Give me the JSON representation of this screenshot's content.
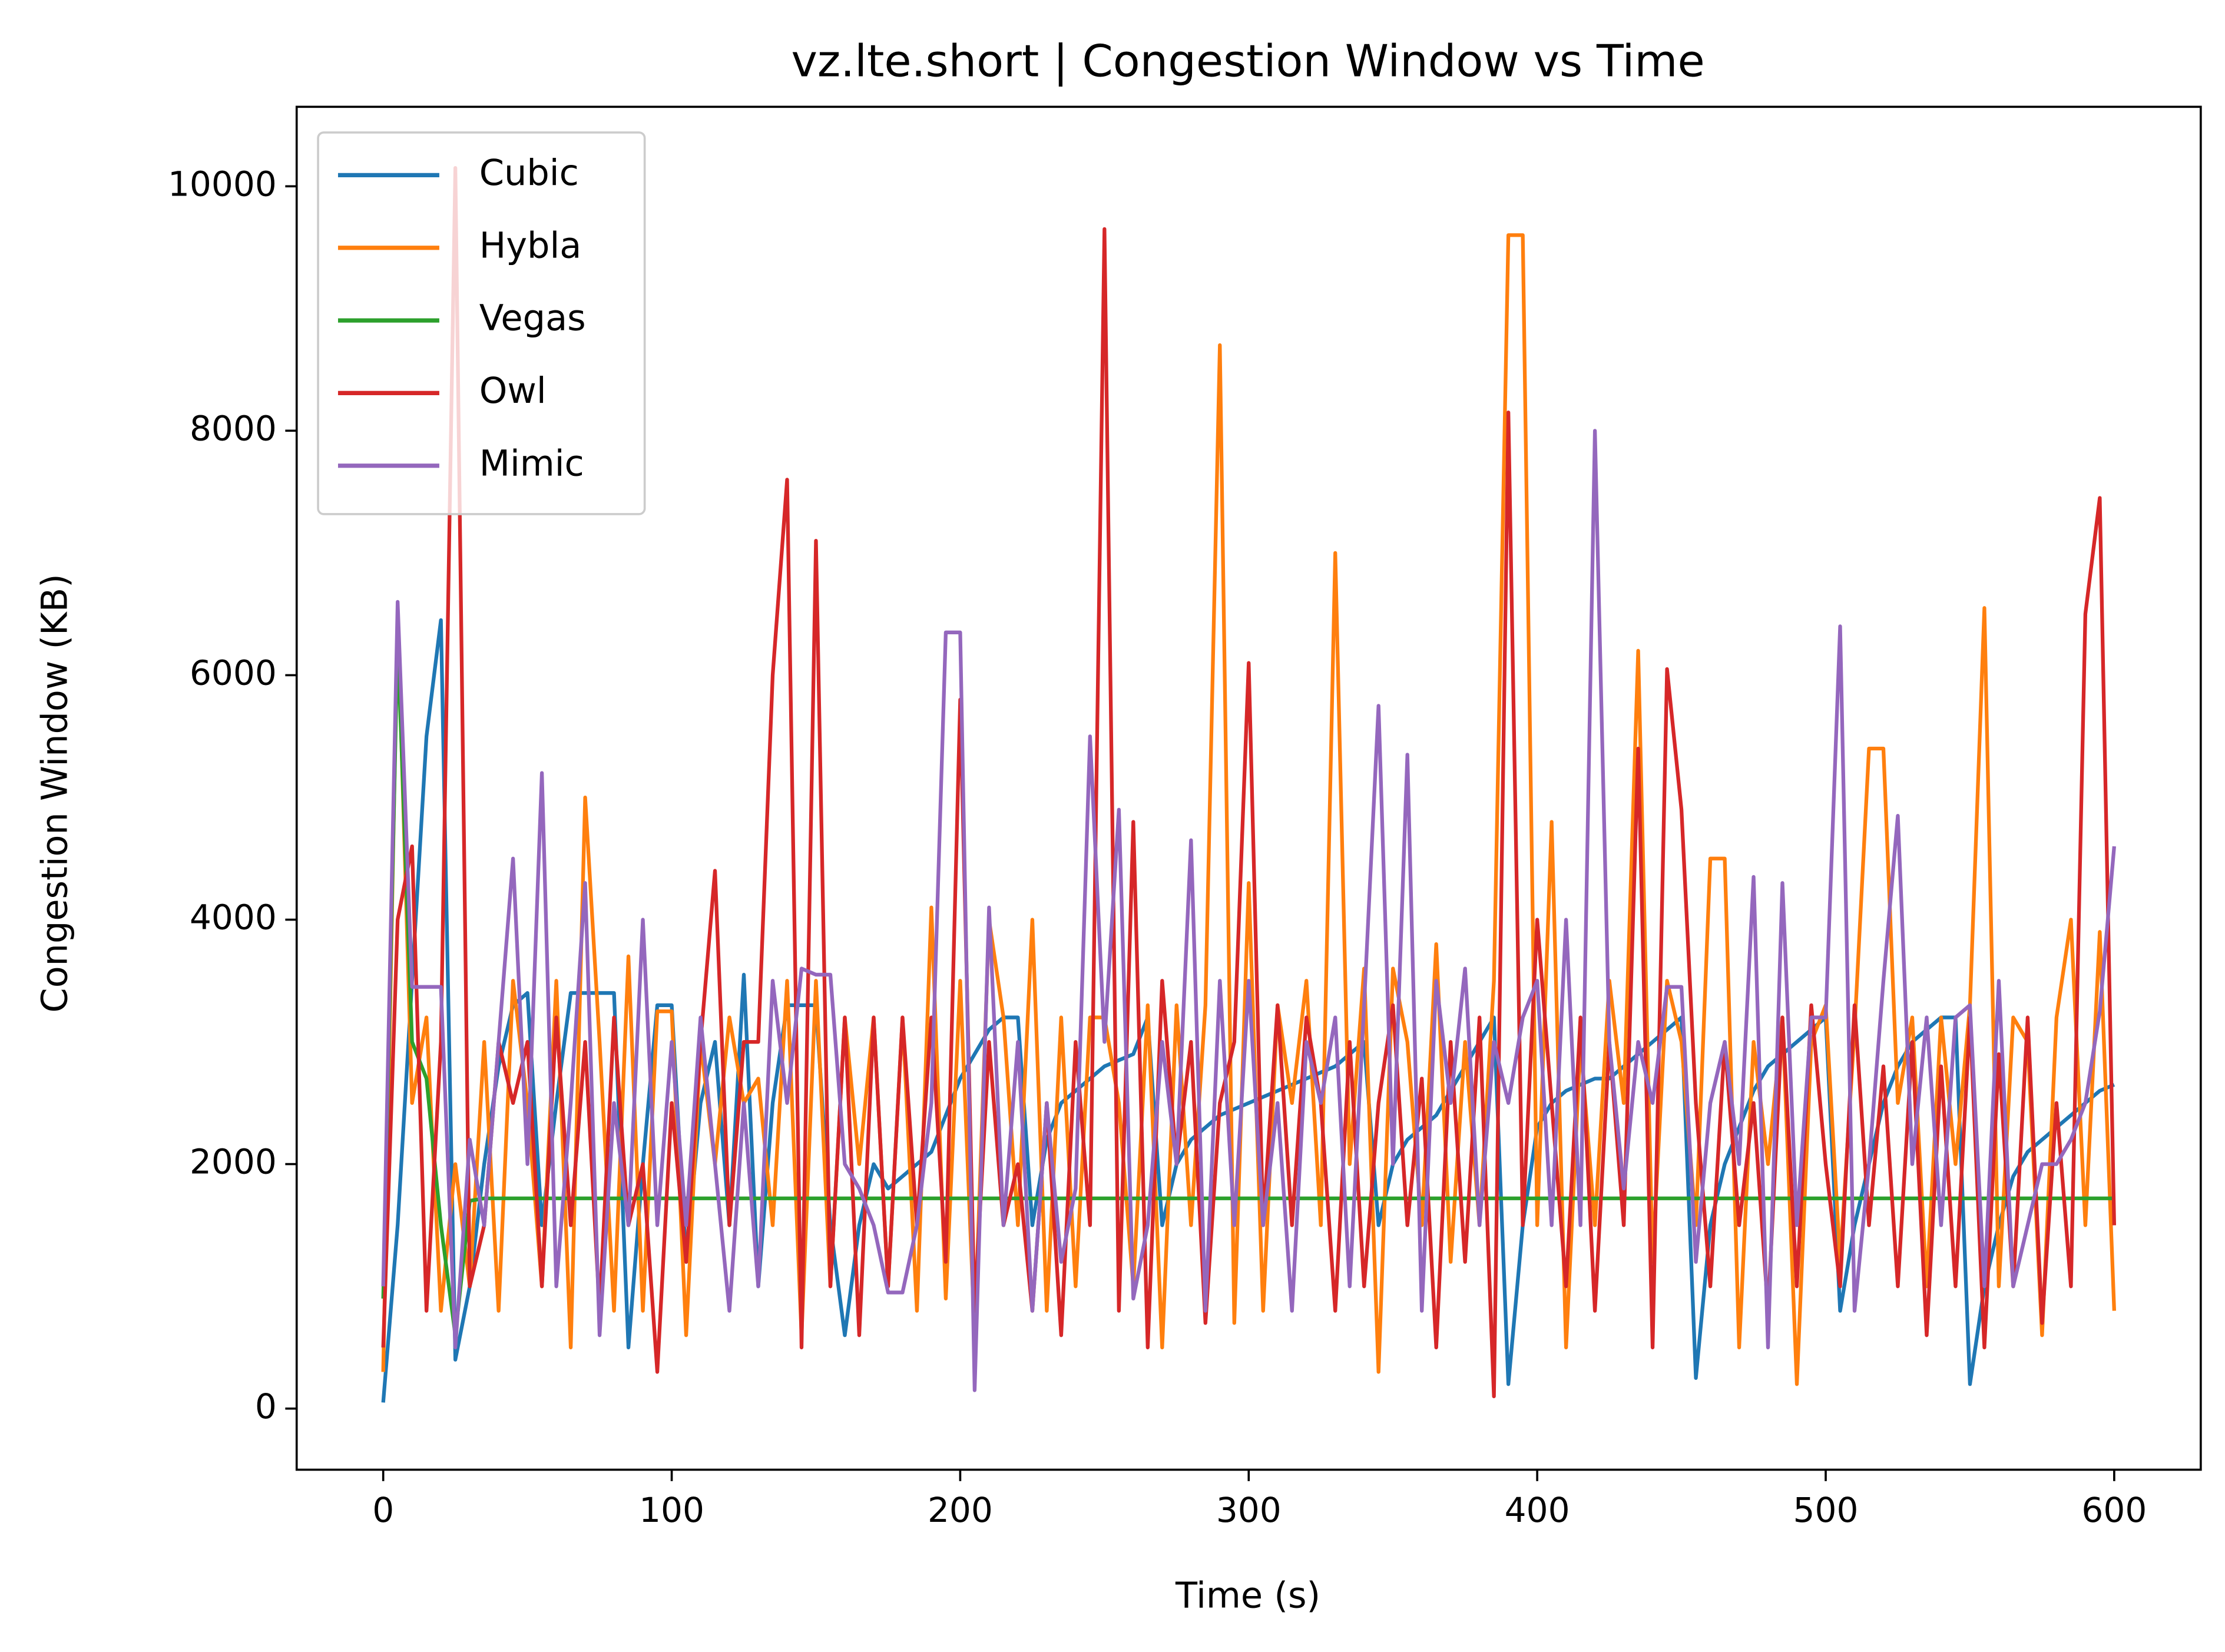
{
  "chart_data": {
    "type": "line",
    "title": "vz.lte.short | Congestion Window vs Time",
    "xlabel": "Time (s)",
    "ylabel": "Congestion Window (KB)",
    "x": [
      0,
      5,
      10,
      15,
      20,
      25,
      30,
      35,
      40,
      45,
      50,
      55,
      60,
      65,
      70,
      75,
      80,
      85,
      90,
      95,
      100,
      105,
      110,
      115,
      120,
      125,
      130,
      135,
      140,
      145,
      150,
      155,
      160,
      165,
      170,
      175,
      180,
      185,
      190,
      195,
      200,
      205,
      210,
      215,
      220,
      225,
      230,
      235,
      240,
      245,
      250,
      255,
      260,
      265,
      270,
      275,
      280,
      285,
      290,
      295,
      300,
      305,
      310,
      315,
      320,
      325,
      330,
      335,
      340,
      345,
      350,
      355,
      360,
      365,
      370,
      375,
      380,
      385,
      390,
      395,
      400,
      405,
      410,
      415,
      420,
      425,
      430,
      435,
      440,
      445,
      450,
      455,
      460,
      465,
      470,
      475,
      480,
      485,
      490,
      495,
      500,
      505,
      510,
      515,
      520,
      525,
      530,
      535,
      540,
      545,
      550,
      555,
      560,
      565,
      570,
      575,
      580,
      585,
      590,
      595,
      600
    ],
    "series": [
      {
        "name": "Cubic",
        "color": "#1f77b4",
        "values": [
          50,
          1500,
          3500,
          5500,
          6450,
          400,
          1000,
          2000,
          2800,
          3300,
          3400,
          1500,
          2500,
          3400,
          3400,
          3400,
          3400,
          500,
          2000,
          3300,
          3300,
          1200,
          2500,
          3000,
          1500,
          3550,
          1000,
          2500,
          3300,
          3300,
          3300,
          1500,
          600,
          1500,
          2000,
          1800,
          1900,
          2000,
          2100,
          2400,
          2700,
          2900,
          3100,
          3200,
          3200,
          1500,
          2200,
          2500,
          2600,
          2700,
          2800,
          2850,
          2900,
          3200,
          1500,
          2000,
          2200,
          2300,
          2400,
          2450,
          2500,
          2550,
          2600,
          2650,
          2700,
          2750,
          2800,
          2900,
          3000,
          1500,
          2000,
          2200,
          2300,
          2400,
          2600,
          2800,
          3000,
          3200,
          200,
          1500,
          2300,
          2500,
          2600,
          2650,
          2700,
          2700,
          2800,
          2900,
          3000,
          3100,
          3200,
          250,
          1500,
          2000,
          2300,
          2600,
          2800,
          2900,
          3000,
          3100,
          3200,
          800,
          1500,
          2000,
          2500,
          2800,
          3000,
          3100,
          3200,
          3200,
          200,
          1000,
          1500,
          1900,
          2100,
          2200,
          2300,
          2400,
          2500,
          2600,
          2650
        ]
      },
      {
        "name": "Hybla",
        "color": "#ff7f0e",
        "values": [
          300,
          6500,
          2500,
          3200,
          800,
          2000,
          1000,
          3000,
          800,
          3500,
          2500,
          1000,
          3500,
          500,
          5000,
          3000,
          800,
          3700,
          800,
          3250,
          3250,
          600,
          3000,
          2000,
          3200,
          2500,
          2700,
          1500,
          3500,
          600,
          3500,
          1000,
          3200,
          2000,
          3200,
          1000,
          3200,
          800,
          4100,
          900,
          3500,
          600,
          4000,
          3200,
          1500,
          4000,
          800,
          3200,
          1000,
          3200,
          3200,
          2500,
          1000,
          3300,
          500,
          3300,
          1500,
          3300,
          8700,
          700,
          4300,
          800,
          3300,
          2500,
          3500,
          1500,
          7000,
          2000,
          3600,
          300,
          3600,
          3000,
          1500,
          3800,
          1200,
          3000,
          1500,
          3500,
          9600,
          9600,
          1500,
          4800,
          500,
          3000,
          1500,
          3500,
          2500,
          6200,
          1200,
          3500,
          3000,
          1500,
          4500,
          4500,
          500,
          3000,
          2000,
          3200,
          200,
          3000,
          3300,
          1200,
          3100,
          5400,
          5400,
          2500,
          3200,
          1000,
          3200,
          2000,
          3300,
          6550,
          1000,
          3200,
          3000,
          600,
          3200,
          4000,
          1500,
          3900,
          800
        ]
      },
      {
        "name": "Vegas",
        "color": "#2ca02c",
        "values": [
          900,
          6300,
          3000,
          2700,
          1500,
          600,
          1700,
          1720,
          1720,
          1720,
          1720,
          1720,
          1720,
          1720,
          1720,
          1720,
          1720,
          1720,
          1720,
          1720,
          1720,
          1720,
          1720,
          1720,
          1720,
          1720,
          1720,
          1720,
          1720,
          1720,
          1720,
          1720,
          1720,
          1720,
          1720,
          1720,
          1720,
          1720,
          1720,
          1720,
          1720,
          1720,
          1720,
          1720,
          1720,
          1720,
          1720,
          1720,
          1720,
          1720,
          1720,
          1720,
          1720,
          1720,
          1720,
          1720,
          1720,
          1720,
          1720,
          1720,
          1720,
          1720,
          1720,
          1720,
          1720,
          1720,
          1720,
          1720,
          1720,
          1720,
          1720,
          1720,
          1720,
          1720,
          1720,
          1720,
          1720,
          1720,
          1720,
          1720,
          1720,
          1720,
          1720,
          1720,
          1720,
          1720,
          1720,
          1720,
          1720,
          1720,
          1720,
          1720,
          1720,
          1720,
          1720,
          1720,
          1720,
          1720,
          1720,
          1720,
          1720,
          1720,
          1720,
          1720,
          1720,
          1720,
          1720,
          1720,
          1720,
          1720,
          1720,
          1720,
          1720,
          1720,
          1720,
          1720,
          1720,
          1720,
          1720,
          1720,
          1720
        ]
      },
      {
        "name": "Owl",
        "color": "#d62728",
        "values": [
          500,
          4000,
          4600,
          800,
          3000,
          10150,
          1000,
          1500,
          3000,
          2500,
          3000,
          1000,
          3200,
          1500,
          3000,
          800,
          3200,
          1500,
          2000,
          300,
          2500,
          1200,
          3000,
          4400,
          1500,
          3000,
          3000,
          6000,
          7600,
          500,
          7100,
          1000,
          3200,
          600,
          3200,
          1000,
          3200,
          1500,
          3200,
          1200,
          5800,
          800,
          3000,
          1500,
          2000,
          800,
          2500,
          600,
          3000,
          1500,
          9650,
          800,
          4800,
          500,
          3500,
          2000,
          3000,
          700,
          2500,
          3000,
          6100,
          1500,
          3300,
          1500,
          3200,
          2500,
          800,
          3000,
          1000,
          2500,
          3300,
          1500,
          2700,
          500,
          3000,
          1200,
          3200,
          100,
          8150,
          1500,
          4000,
          2500,
          1000,
          3200,
          800,
          3000,
          1500,
          5400,
          500,
          6050,
          4900,
          2500,
          1000,
          3000,
          1500,
          2500,
          800,
          3200,
          1000,
          3300,
          2000,
          1000,
          3300,
          1500,
          2800,
          1000,
          3000,
          600,
          2800,
          1000,
          3200,
          500,
          2900,
          1000,
          3200,
          700,
          2500,
          1000,
          6500,
          7450,
          1500
        ]
      },
      {
        "name": "Mimic",
        "color": "#9467bd",
        "values": [
          1000,
          6600,
          3450,
          3450,
          3450,
          500,
          2200,
          1500,
          3000,
          4500,
          2000,
          5200,
          1000,
          2500,
          4300,
          600,
          2500,
          1500,
          4000,
          1500,
          3000,
          1500,
          3200,
          2000,
          800,
          2500,
          1000,
          3500,
          2500,
          3600,
          3550,
          3550,
          2000,
          1800,
          1500,
          950,
          950,
          1500,
          2500,
          6350,
          6350,
          150,
          4100,
          1500,
          3000,
          800,
          2500,
          1200,
          1800,
          5500,
          3000,
          4900,
          900,
          1500,
          3000,
          2000,
          4650,
          800,
          3500,
          1500,
          3500,
          1500,
          2500,
          800,
          3000,
          2500,
          3200,
          1000,
          3300,
          5750,
          2000,
          5350,
          800,
          3500,
          2500,
          3600,
          1500,
          3000,
          2500,
          3200,
          3500,
          1500,
          4000,
          1500,
          8000,
          3000,
          1800,
          3000,
          2500,
          3450,
          3450,
          1200,
          2500,
          3000,
          2000,
          4350,
          500,
          4300,
          1500,
          3200,
          3200,
          6400,
          800,
          2000,
          3500,
          4850,
          2000,
          3200,
          1500,
          3200,
          3300,
          1000,
          3500,
          1000,
          1500,
          2000,
          2000,
          2200,
          2500,
          3250,
          4600
        ]
      }
    ],
    "xlim": [
      -30,
      630
    ],
    "ylim": [
      -500,
      10650
    ],
    "xticks": [
      0,
      100,
      200,
      300,
      400,
      500,
      600
    ],
    "yticks": [
      0,
      2000,
      4000,
      6000,
      8000,
      10000
    ],
    "legend": "upper left",
    "grid": false
  }
}
